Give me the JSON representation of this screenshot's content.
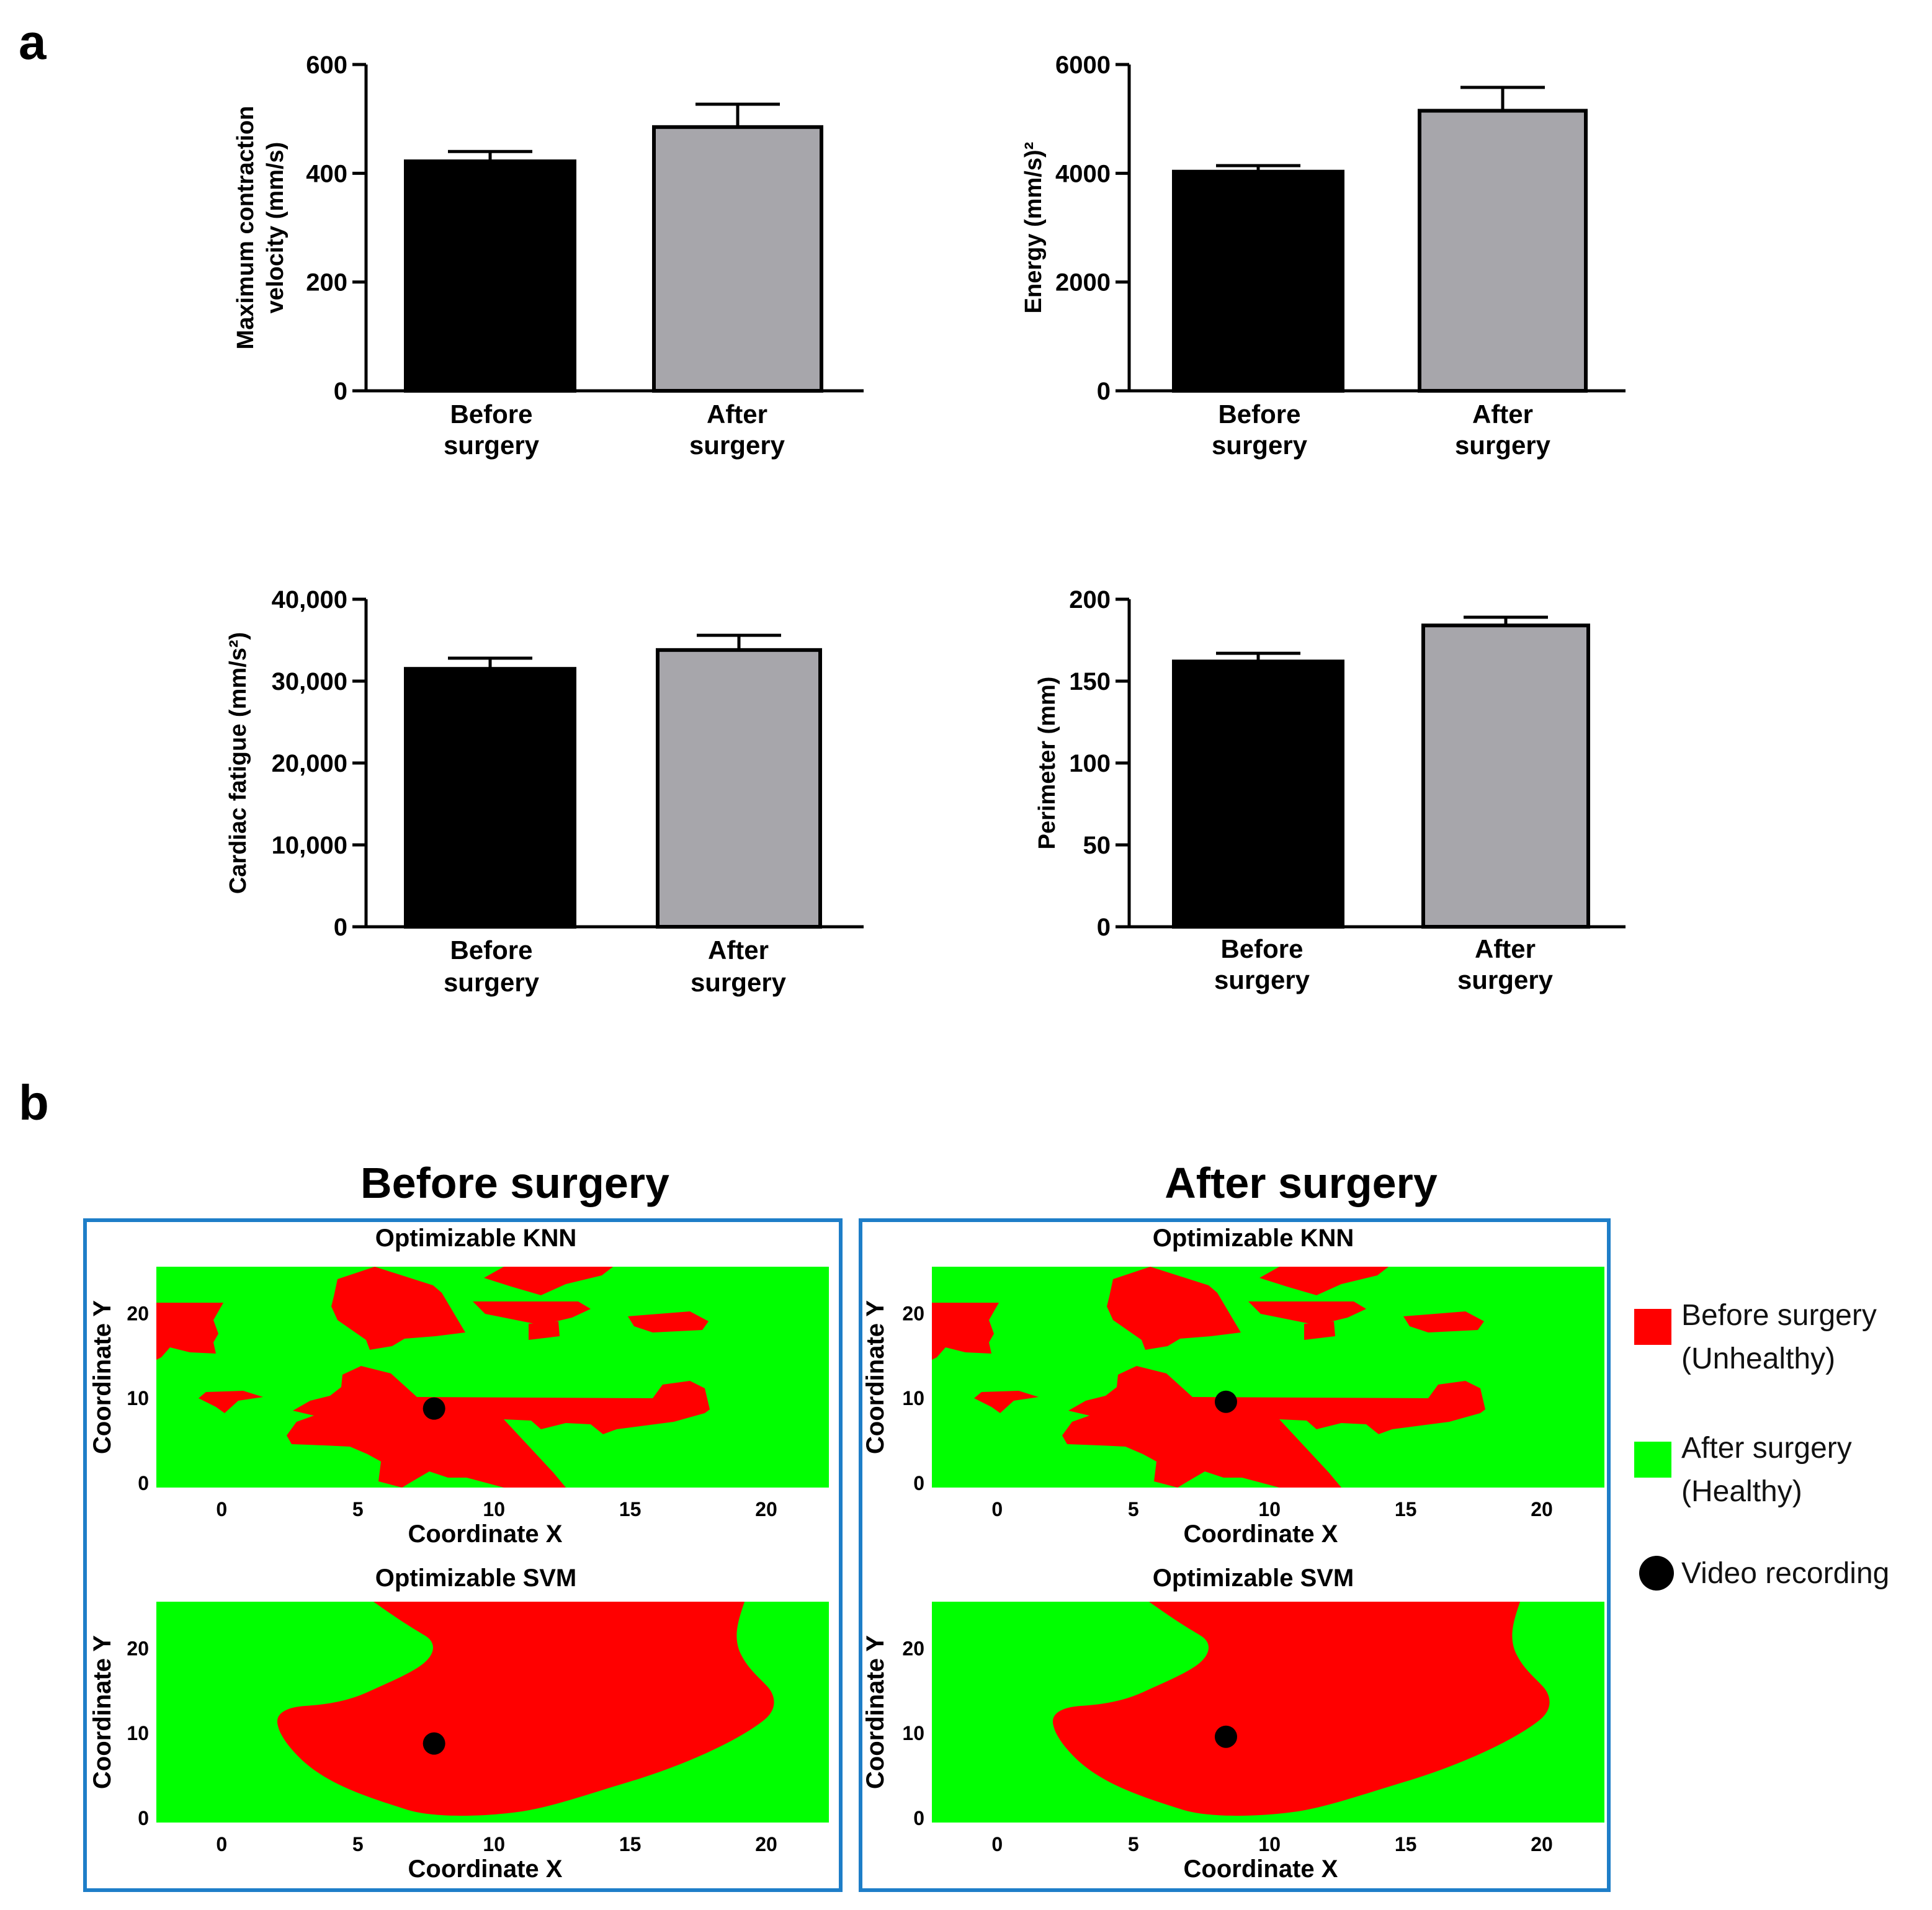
{
  "panels": {
    "a_label": "a",
    "b_label": "b"
  },
  "colors": {
    "before": "#000000",
    "after": "#a7a6ab",
    "unhealthy": "#ff0000",
    "healthy": "#00ff00",
    "frame": "#1e7ec8"
  },
  "chart_data": [
    {
      "type": "bar",
      "id": "velocity",
      "categories": [
        "Before surgery",
        "After surgery"
      ],
      "values": [
        422,
        485
      ],
      "errors": [
        18,
        42
      ],
      "ylim": [
        0,
        600
      ],
      "yticks": [
        0,
        200,
        400,
        600
      ],
      "tick_labels": [
        "0",
        "200",
        "400",
        "600"
      ],
      "ylabel": [
        "Maximum contraction",
        "velocity (mm/s)"
      ]
    },
    {
      "type": "bar",
      "id": "energy",
      "categories": [
        "Before surgery",
        "After surgery"
      ],
      "values": [
        4030,
        5150
      ],
      "errors": [
        110,
        430
      ],
      "ylim": [
        0,
        6000
      ],
      "yticks": [
        0,
        2000,
        4000,
        6000
      ],
      "tick_labels": [
        "0",
        "2000",
        "4000",
        "6000"
      ],
      "ylabel": [
        "Energy (mm/s)²"
      ]
    },
    {
      "type": "bar",
      "id": "fatigue",
      "categories": [
        "Before surgery",
        "After surgery"
      ],
      "values": [
        31500,
        33800
      ],
      "errors": [
        1300,
        1800
      ],
      "ylim": [
        0,
        40000
      ],
      "yticks": [
        0,
        10000,
        20000,
        30000,
        40000
      ],
      "tick_labels": [
        "0",
        "10,000",
        "20,000",
        "30,000",
        "40,000"
      ],
      "ylabel": [
        "Cardiac fatigue (mm/s²)"
      ]
    },
    {
      "type": "bar",
      "id": "perimeter",
      "categories": [
        "Before surgery",
        "After surgery"
      ],
      "values": [
        162,
        184
      ],
      "errors": [
        5,
        5
      ],
      "ylim": [
        0,
        200
      ],
      "yticks": [
        0,
        50,
        100,
        150,
        200
      ],
      "tick_labels": [
        "0",
        "50",
        "100",
        "150",
        "200"
      ],
      "ylabel": [
        "Perimeter (mm)"
      ]
    },
    {
      "type": "heatmap",
      "id": "decision-maps",
      "columns": [
        {
          "title": "Before surgery",
          "point": [
            7.8,
            8.8
          ]
        },
        {
          "title": "After surgery",
          "point": [
            8.4,
            9.6
          ]
        }
      ],
      "models": [
        "Optimizable KNN",
        "Optimizable SVM"
      ],
      "xlabel": "Coordinate X",
      "ylabel": "Coordinate Y",
      "xlim": [
        -2.4,
        22.3
      ],
      "ylim": [
        -0.5,
        25.5
      ],
      "xticks": [
        0,
        5,
        10,
        15,
        20
      ],
      "yticks": [
        0,
        10,
        20
      ],
      "classes": [
        "Before surgery (Unhealthy)",
        "After surgery (Healthy)"
      ]
    }
  ],
  "legend": {
    "unhealthy": [
      "Before surgery",
      "(Unhealthy)"
    ],
    "healthy": [
      "After surgery",
      "(Healthy)"
    ],
    "recording": "Video recording"
  }
}
